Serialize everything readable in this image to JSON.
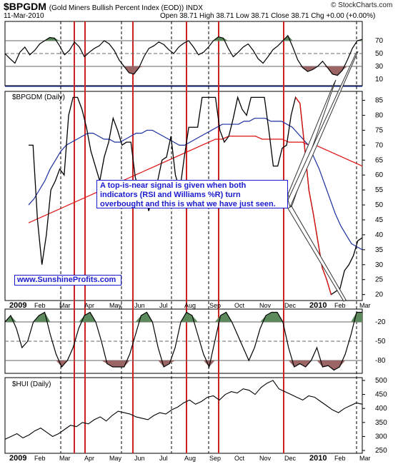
{
  "header": {
    "symbol": "$BPGDM",
    "subtitle": "(Gold Miners Bullish Percent Index (EOD)) INDX",
    "date": "11-Mar-2010",
    "ohlc": "Open 38.71  High 38.71  Low 38.71  Close 38.71  Chg +0.00 (+0.00%)",
    "credit": "© StockCharts.com"
  },
  "annotations": {
    "note": "A top-is-near signal is given when both indicators (RSI and Williams %R) turn overbought and this is what we have just seen.",
    "website": "www.SunshineProfits.com"
  },
  "colors": {
    "price": "#000000",
    "ma_short": "#1b2fa0",
    "ma_long": "#e01010",
    "highlight": "#cc2222",
    "overbought_fill": "#5d8a5d",
    "oversold_fill": "#9c6565",
    "note_text": "#1b1bd0"
  },
  "chart_data": [
    {
      "type": "line",
      "panel": "rsi",
      "title": "",
      "yticks": [
        70,
        50,
        30,
        10
      ],
      "overbought": 70,
      "oversold": 30,
      "series": [
        {
          "values": [
            50,
            42,
            35,
            52,
            60,
            48,
            55,
            65,
            70,
            75,
            74,
            62,
            48,
            55,
            68,
            60,
            45,
            52,
            58,
            62,
            70,
            65,
            55,
            40,
            30,
            20,
            18,
            28,
            45,
            58,
            62,
            68,
            64,
            56,
            50,
            60,
            66,
            70,
            60,
            48,
            52,
            60,
            70,
            76,
            74,
            58,
            45,
            52,
            60,
            65,
            55,
            42,
            35,
            45,
            56,
            62,
            70,
            78,
            60,
            40,
            28,
            22,
            25,
            30,
            38,
            28,
            18,
            16,
            24,
            40,
            58,
            70,
            72
          ]
        }
      ]
    },
    {
      "type": "line",
      "panel": "price",
      "title": "$BPGDM (Daily)",
      "ylabel": "",
      "yticks": [
        85,
        80,
        75,
        70,
        65,
        60,
        55,
        50,
        45,
        40,
        35,
        30,
        25,
        20
      ],
      "ylim": [
        18,
        88
      ],
      "xticks": [
        "2009",
        "Feb",
        "Mar",
        "Apr",
        "May",
        "Jun",
        "Jul",
        "Aug",
        "Sep",
        "Oct",
        "Nov",
        "Dec",
        "2010",
        "Feb",
        "Mar"
      ],
      "series": [
        {
          "values": [
            70,
            70,
            45,
            30,
            40,
            55,
            58,
            62,
            60,
            80,
            86,
            86,
            82,
            76,
            68,
            63,
            58,
            66,
            71,
            79,
            75,
            70,
            71,
            71,
            59,
            55,
            55,
            48,
            53,
            58,
            65,
            66,
            73,
            60,
            55,
            66,
            76,
            76,
            76,
            86,
            86,
            86,
            86,
            75,
            71,
            73,
            79,
            86,
            82,
            80,
            86,
            86,
            86,
            86,
            75,
            63,
            63,
            69,
            70,
            80,
            86,
            84,
            70,
            55,
            47,
            38,
            29,
            25,
            20,
            21,
            22,
            28,
            30,
            33,
            38,
            39
          ]
        },
        {
          "values": [
            50,
            52,
            55,
            58,
            62,
            65,
            68,
            70,
            71,
            72,
            73,
            74,
            74,
            73,
            72,
            72,
            71,
            71,
            72,
            73,
            74,
            74,
            75,
            75,
            74,
            73,
            72,
            71,
            70,
            70,
            71,
            72,
            73,
            74,
            75,
            76,
            77,
            77,
            77,
            77,
            78,
            78,
            79,
            79,
            79,
            78,
            78,
            78,
            77,
            76,
            74,
            72,
            70,
            66,
            62,
            57,
            52,
            47,
            43,
            40,
            37,
            36,
            35
          ]
        },
        {
          "values": [
            44,
            45,
            46,
            47,
            48,
            49,
            50,
            51,
            52,
            53,
            54,
            55,
            56,
            57,
            58,
            59,
            60,
            61,
            62,
            63,
            64,
            65,
            66,
            67,
            68,
            69,
            70,
            71,
            72,
            72,
            73,
            73,
            73,
            73,
            73,
            72,
            72,
            72,
            72,
            71,
            71,
            71,
            70,
            70,
            69,
            68,
            67,
            66,
            65,
            64,
            63
          ]
        }
      ]
    },
    {
      "type": "line",
      "panel": "williams_r",
      "title": "",
      "yticks": [
        -20,
        -50,
        -80
      ],
      "overbought": -20,
      "oversold": -80,
      "series": [
        {
          "values": [
            -20,
            -10,
            -30,
            -60,
            -50,
            -20,
            -10,
            -5,
            -40,
            -70,
            -90,
            -80,
            -60,
            -30,
            -10,
            -5,
            -20,
            -50,
            -85,
            -90,
            -90,
            -90,
            -70,
            -40,
            -10,
            -5,
            -20,
            -60,
            -90,
            -85,
            -60,
            -20,
            -5,
            -10,
            -40,
            -70,
            -90,
            -50,
            -10,
            -5,
            -20,
            -40,
            -60,
            -80,
            -60,
            -30,
            -10,
            -5,
            -5,
            -20,
            -60,
            -90,
            -85,
            -90,
            -80,
            -60,
            -90,
            -88,
            -95,
            -90,
            -70,
            -40,
            -5,
            -5
          ]
        }
      ]
    },
    {
      "type": "line",
      "panel": "hui",
      "title": "$HUI (Daily)",
      "yticks": [
        500,
        450,
        400,
        350,
        300,
        250
      ],
      "ylim": [
        240,
        510
      ],
      "series": [
        {
          "values": [
            290,
            300,
            310,
            295,
            305,
            320,
            330,
            315,
            300,
            310,
            325,
            340,
            335,
            350,
            345,
            360,
            370,
            355,
            375,
            390,
            385,
            380,
            370,
            365,
            360,
            375,
            385,
            380,
            395,
            405,
            420,
            430,
            415,
            425,
            440,
            445,
            430,
            450,
            460,
            455,
            470,
            465,
            450,
            475,
            490,
            500,
            470,
            460,
            450,
            440,
            430,
            445,
            440,
            425,
            410,
            395,
            385,
            400,
            410,
            420,
            415
          ]
        }
      ]
    }
  ]
}
